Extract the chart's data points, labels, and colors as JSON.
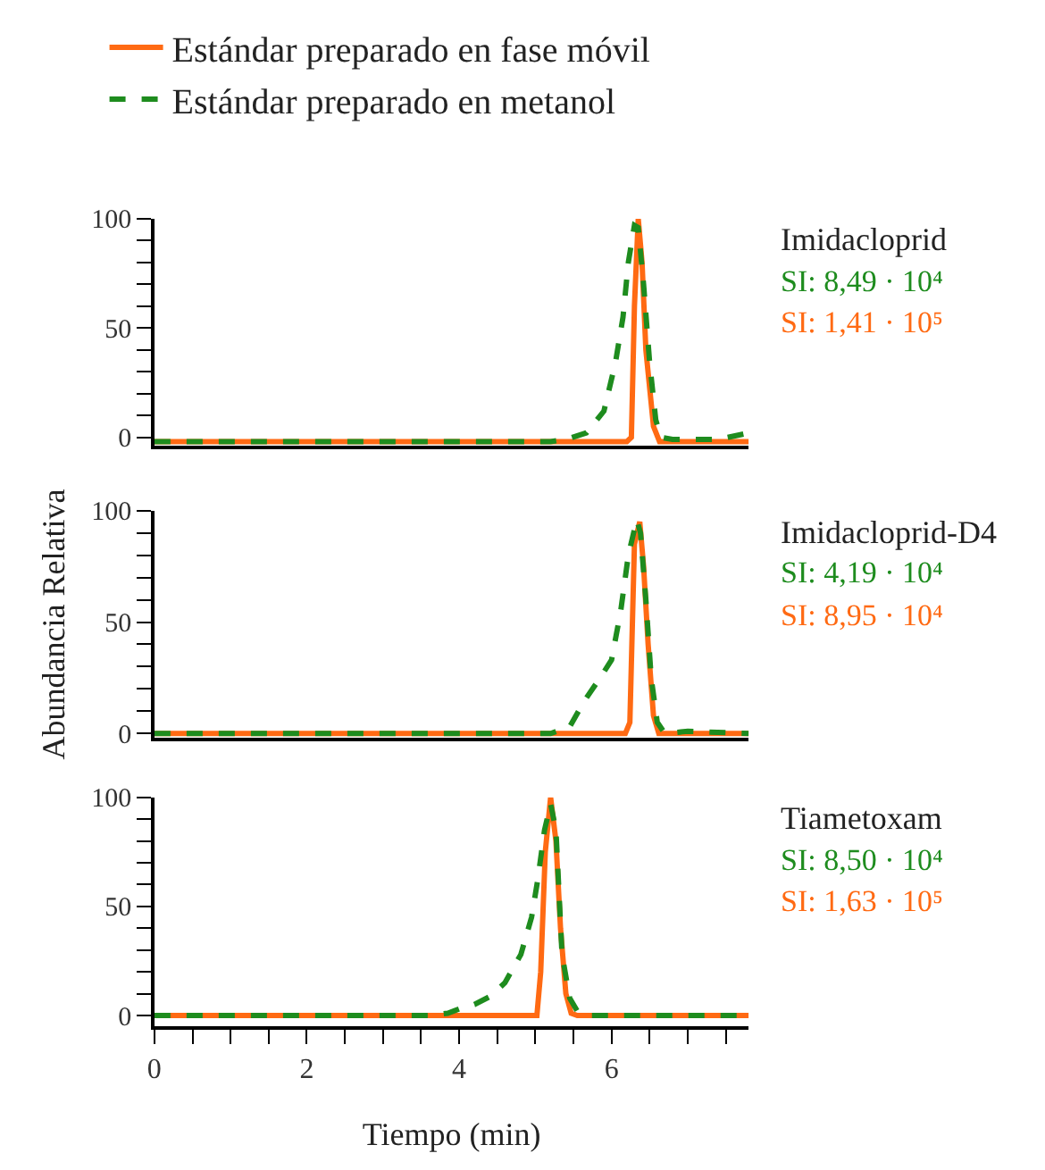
{
  "chart_data": [
    {
      "type": "line",
      "legend": "top left",
      "line_style": "solid",
      "tick_labels": "y",
      "xlim": [
        0,
        7.8
      ],
      "ylim": [
        -4,
        100
      ],
      "yticks": [
        0,
        {
          "value": 10,
          "label": null
        },
        {
          "value": 20,
          "label": null
        },
        {
          "value": 30,
          "label": null
        },
        {
          "value": 40,
          "label": null
        },
        50,
        {
          "value": 60,
          "label": null
        },
        {
          "value": 70,
          "label": null
        },
        {
          "value": 80,
          "label": null
        },
        {
          "value": 90,
          "label": null
        },
        100
      ],
      "annotations": [
        "Imidacloprid",
        "SI: 8,49 · 10⁴",
        "SI: 1,41 · 10⁵"
      ],
      "series": [
        {
          "name": "Estándar preparado en fase móvil",
          "color": "#ff6a13",
          "x": [
            0,
            6.2,
            6.26,
            6.3,
            6.35,
            6.4,
            6.45,
            6.55,
            6.63,
            7.8
          ],
          "values": [
            -2,
            -2,
            0,
            60,
            100,
            80,
            40,
            5,
            -2,
            -2
          ]
        },
        {
          "name": "Estándar preparado en metanol",
          "color": "#1e8c1e",
          "line_style": "dashed",
          "x": [
            0,
            5.2,
            5.4,
            5.67,
            5.9,
            6.05,
            6.15,
            6.22,
            6.3,
            6.35,
            6.42,
            6.5,
            6.58,
            6.65,
            6.8,
            7.4,
            7.8
          ],
          "values": [
            -2,
            -2,
            -1,
            2,
            12,
            34,
            55,
            80,
            97,
            96,
            70,
            34,
            8,
            0,
            -1,
            -1,
            2
          ]
        }
      ]
    },
    {
      "type": "line",
      "legend": false,
      "tick_labels": "y",
      "xlim": [
        0,
        7.8
      ],
      "ylim": [
        -2,
        100
      ],
      "ylabel": "Abundancia Relativa",
      "yticks": [
        0,
        {
          "value": 10,
          "label": null
        },
        {
          "value": 20,
          "label": null
        },
        {
          "value": 30,
          "label": null
        },
        {
          "value": 40,
          "label": null
        },
        50,
        {
          "value": 60,
          "label": null
        },
        {
          "value": 70,
          "label": null
        },
        {
          "value": 80,
          "label": null
        },
        {
          "value": 90,
          "label": null
        },
        100
      ],
      "annotations": [
        "Imidacloprid-D4",
        "SI: 4,19 · 10⁴",
        "SI: 8,95 · 10⁴"
      ],
      "series": [
        {
          "color": "#ff6a13",
          "x": [
            0,
            6.18,
            6.24,
            6.3,
            6.37,
            6.42,
            6.48,
            6.55,
            6.62,
            7.8
          ],
          "values": [
            0,
            0,
            5,
            85,
            95,
            75,
            40,
            8,
            0,
            0
          ]
        },
        {
          "color": "#1e8c1e",
          "line_style": "dashed",
          "x": [
            0,
            5.2,
            5.45,
            5.65,
            5.85,
            6.0,
            6.12,
            6.22,
            6.33,
            6.38,
            6.45,
            6.52,
            6.6,
            6.7,
            7.0,
            7.8
          ],
          "values": [
            0,
            0,
            3,
            15,
            25,
            33,
            55,
            80,
            96,
            90,
            60,
            25,
            5,
            0,
            1,
            0
          ]
        }
      ]
    },
    {
      "type": "line",
      "legend": false,
      "xlim": [
        0,
        7.8
      ],
      "ylim": [
        -5,
        100
      ],
      "xlabel": "Tiempo (min)",
      "xticks": [
        0,
        {
          "value": 0.5,
          "label": null
        },
        {
          "value": 1,
          "label": null
        },
        {
          "value": 1.5,
          "label": null
        },
        2,
        {
          "value": 2.5,
          "label": null
        },
        {
          "value": 3,
          "label": null
        },
        {
          "value": 3.5,
          "label": null
        },
        4,
        {
          "value": 4.5,
          "label": null
        },
        {
          "value": 5,
          "label": null
        },
        {
          "value": 5.5,
          "label": null
        },
        6,
        {
          "value": 6.5,
          "label": null
        },
        {
          "value": 7,
          "label": null
        },
        {
          "value": 7.5,
          "label": null
        }
      ],
      "yticks": [
        0,
        {
          "value": 10,
          "label": null
        },
        {
          "value": 20,
          "label": null
        },
        {
          "value": 30,
          "label": null
        },
        {
          "value": 40,
          "label": null
        },
        50,
        {
          "value": 60,
          "label": null
        },
        {
          "value": 70,
          "label": null
        },
        {
          "value": 80,
          "label": null
        },
        {
          "value": 90,
          "label": null
        },
        100
      ],
      "annotations": [
        "Tiametoxam",
        "SI: 8,50 · 10⁴",
        "SI: 1,63 · 10⁵"
      ],
      "series": [
        {
          "color": "#ff6a13",
          "x": [
            0,
            5.02,
            5.07,
            5.13,
            5.2,
            5.27,
            5.33,
            5.4,
            5.47,
            5.55,
            7.8
          ],
          "values": [
            0,
            0,
            20,
            75,
            100,
            80,
            40,
            10,
            1,
            0,
            0
          ]
        },
        {
          "color": "#1e8c1e",
          "line_style": "dashed",
          "x": [
            0,
            3.6,
            3.85,
            4.0,
            4.2,
            4.42,
            4.6,
            4.81,
            4.95,
            5.03,
            5.12,
            5.2,
            5.27,
            5.35,
            5.45,
            5.55,
            5.7,
            7.8
          ],
          "values": [
            0,
            0,
            1,
            3,
            5,
            9,
            15,
            28,
            45,
            62,
            85,
            97,
            85,
            28,
            8,
            2,
            0,
            0
          ]
        }
      ]
    }
  ]
}
